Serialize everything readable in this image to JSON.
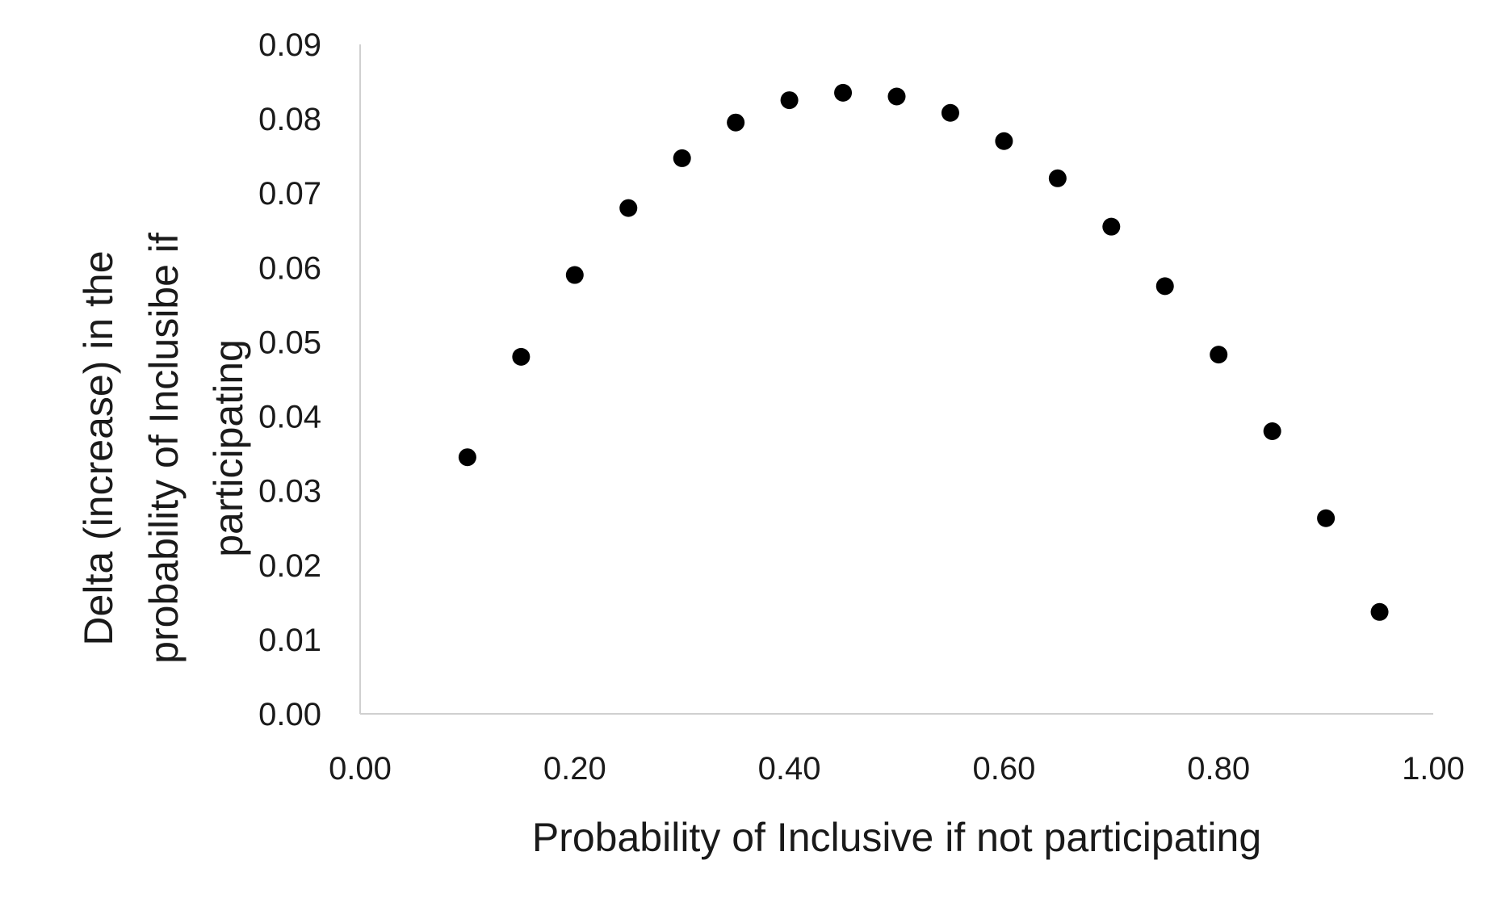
{
  "chart_data": {
    "type": "scatter",
    "title": "",
    "xlabel": "Probability of Inclusive if not participating",
    "ylabel_lines": [
      "Delta (increase) in the",
      "probability of Inclusibe if",
      "participating"
    ],
    "xlim": [
      0,
      1
    ],
    "ylim": [
      0,
      0.09
    ],
    "x_ticks": [
      "0.00",
      "0.20",
      "0.40",
      "0.60",
      "0.80",
      "1.00"
    ],
    "y_ticks": [
      "0.00",
      "0.01",
      "0.02",
      "0.03",
      "0.04",
      "0.05",
      "0.06",
      "0.07",
      "0.08",
      "0.09"
    ],
    "grid": false,
    "marker_color": "#000000",
    "series": [
      {
        "x": [
          0.1,
          0.15,
          0.2,
          0.25,
          0.3,
          0.35,
          0.4,
          0.45,
          0.5,
          0.55,
          0.6,
          0.65,
          0.7,
          0.75,
          0.8,
          0.85,
          0.9,
          0.95
        ],
        "y": [
          0.0345,
          0.048,
          0.059,
          0.068,
          0.0747,
          0.0795,
          0.0825,
          0.0835,
          0.083,
          0.0808,
          0.077,
          0.072,
          0.0655,
          0.0575,
          0.0483,
          0.038,
          0.0263,
          0.0137
        ]
      }
    ]
  }
}
